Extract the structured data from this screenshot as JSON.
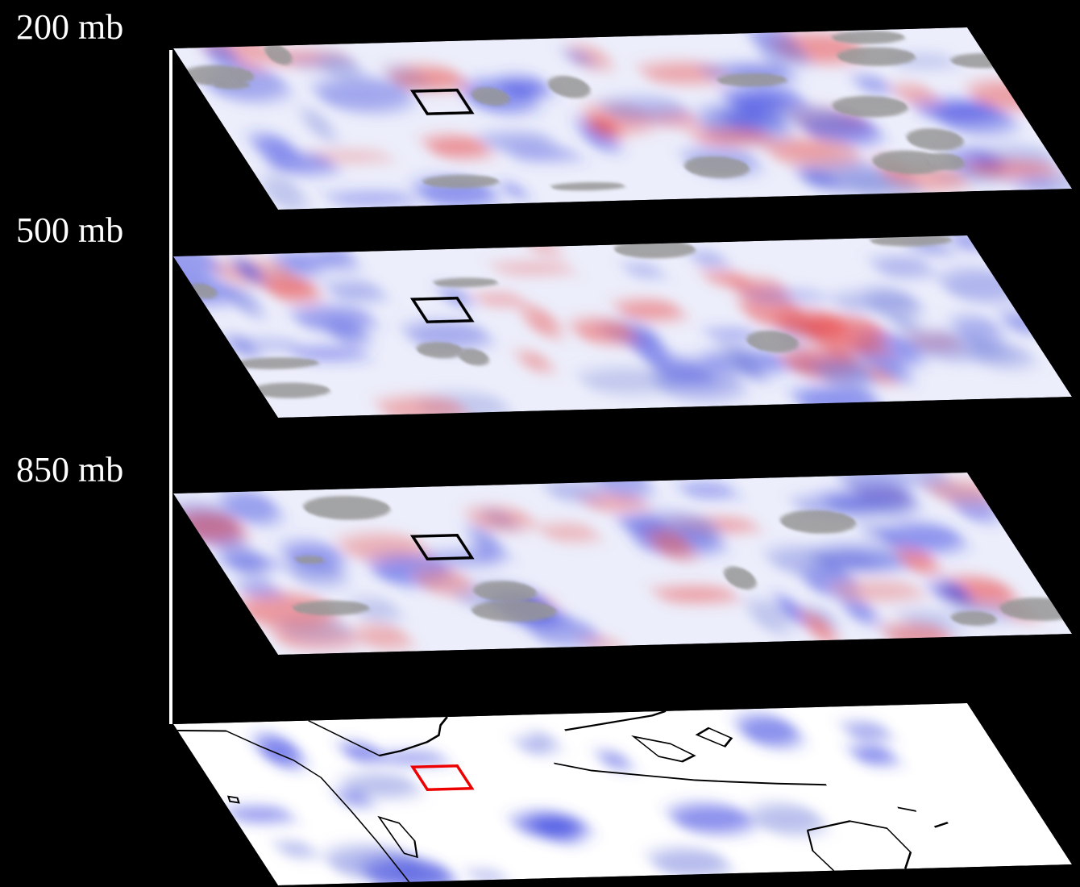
{
  "levels": [
    {
      "label": "200 mb"
    },
    {
      "label": "500 mb"
    },
    {
      "label": "850 mb"
    }
  ]
}
